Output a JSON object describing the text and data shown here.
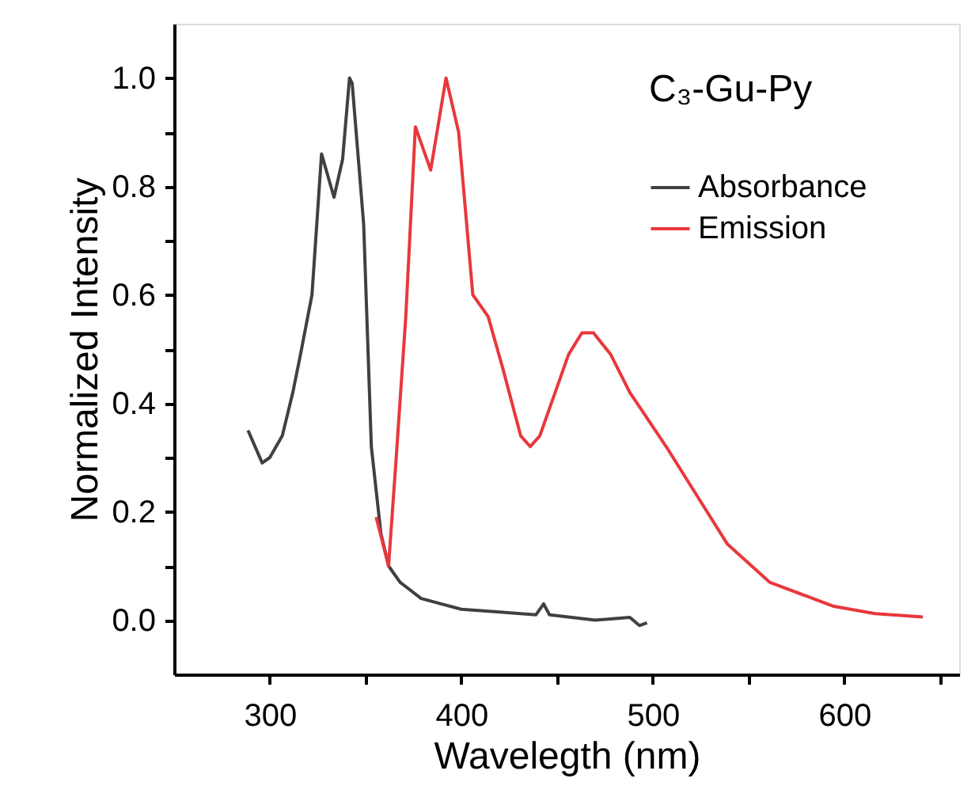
{
  "chart_data": {
    "type": "line",
    "xlabel": "Wavelegth (nm)",
    "ylabel": "Normalized Intensity",
    "annotations": [
      "C₃-Gu-Py"
    ],
    "xlim": [
      250,
      660
    ],
    "ylim": [
      -0.1,
      1.1
    ],
    "xticks": [
      300,
      {
        "value": 350,
        "label": null
      },
      400,
      {
        "value": 450,
        "label": null
      },
      500,
      {
        "value": 550,
        "label": null
      },
      600,
      {
        "value": 650,
        "label": null
      }
    ],
    "yticks": [
      {
        "value": 0,
        "label": "0.0"
      },
      {
        "value": 0.1,
        "label": null
      },
      {
        "value": 0.2,
        "label": "0.2"
      },
      {
        "value": 0.3,
        "label": null
      },
      {
        "value": 0.4,
        "label": "0.4"
      },
      {
        "value": 0.5,
        "label": null
      },
      {
        "value": 0.6,
        "label": "0.6"
      },
      {
        "value": 0.7,
        "label": null
      },
      {
        "value": 0.8,
        "label": "0.8"
      },
      {
        "value": 0.9,
        "label": null
      },
      {
        "value": 1.0,
        "label": "1.0"
      }
    ],
    "grid": false,
    "legend": "top right",
    "marker": "none",
    "line_style": "solid",
    "series": [
      {
        "name": "Absorbance",
        "color": "#404040",
        "x": [
          288.6,
          296,
          300,
          306.5,
          312,
          316,
          322,
          327,
          333.5,
          338,
          341.6,
          343,
          349,
          353,
          358,
          362,
          368,
          379,
          400,
          420,
          439,
          443,
          446,
          470,
          488,
          493,
          497
        ],
        "values": [
          0.35,
          0.29,
          0.3,
          0.34,
          0.42,
          0.49,
          0.6,
          0.86,
          0.78,
          0.85,
          1.0,
          0.99,
          0.73,
          0.32,
          0.16,
          0.1,
          0.07,
          0.04,
          0.02,
          0.015,
          0.01,
          0.03,
          0.01,
          0.0,
          0.005,
          -0.01,
          -0.005
        ]
      },
      {
        "name": "Emission",
        "color": "#e8383d",
        "x": [
          355.5,
          362,
          366,
          371,
          376,
          384,
          392,
          398.6,
          406,
          414,
          422,
          431,
          436,
          441,
          449,
          456,
          463,
          469,
          478,
          488,
          507,
          523,
          539,
          561,
          594,
          616,
          641
        ],
        "values": [
          0.19,
          0.1,
          0.3,
          0.56,
          0.91,
          0.83,
          1.0,
          0.9,
          0.6,
          0.56,
          0.46,
          0.34,
          0.32,
          0.34,
          0.42,
          0.49,
          0.53,
          0.53,
          0.49,
          0.42,
          0.32,
          0.23,
          0.14,
          0.07,
          0.026,
          0.012,
          0.006
        ]
      }
    ]
  }
}
